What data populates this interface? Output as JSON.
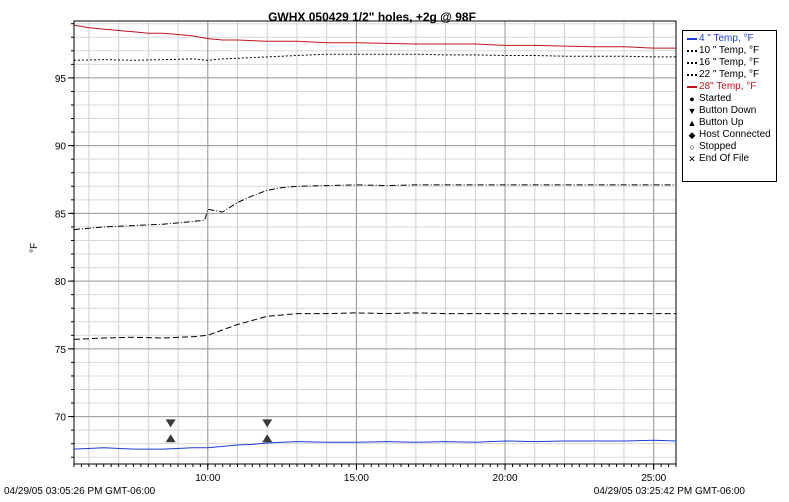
{
  "chart_data": {
    "type": "line",
    "title": "GWHX 050429 1/2\" holes, +2g @ 98F",
    "ylabel": "°F",
    "xlabel": "",
    "xlim": [
      5.5,
      25.75
    ],
    "ylim": [
      66.5,
      99.2
    ],
    "x_ticks": [
      {
        "value": 10,
        "label": "10:00"
      },
      {
        "value": 15,
        "label": "15:00"
      },
      {
        "value": 20,
        "label": "20:00"
      },
      {
        "value": 25,
        "label": "25:00"
      }
    ],
    "y_ticks": [
      70,
      75,
      80,
      85,
      90,
      95
    ],
    "grid": true,
    "legend_position": "right",
    "start_label": "04/29/05 03:05:26 PM GMT-06:00",
    "end_label": "04/29/05 03:25:42 PM GMT-06:00",
    "series": [
      {
        "name": "4 \" Temp, °F",
        "color": "#1a3dd6",
        "dash": "solid",
        "x": [
          5.5,
          6.5,
          7.5,
          8.5,
          9.5,
          10.0,
          10.5,
          11.0,
          11.5,
          12.0,
          12.5,
          13.0,
          14.0,
          15.0,
          16.0,
          17.0,
          18.0,
          19.0,
          20.0,
          21.0,
          22.0,
          23.0,
          24.0,
          25.0,
          25.75
        ],
        "y": [
          67.6,
          67.7,
          67.6,
          67.6,
          67.7,
          67.7,
          67.8,
          67.9,
          67.95,
          68.05,
          68.1,
          68.15,
          68.1,
          68.1,
          68.15,
          68.1,
          68.15,
          68.1,
          68.2,
          68.15,
          68.2,
          68.2,
          68.2,
          68.25,
          68.2
        ]
      },
      {
        "name": "10 \" Temp, °F",
        "color": "#000000",
        "dash": "2,2",
        "x": [
          5.5,
          6.5,
          7.5,
          8.5,
          9.5,
          10.0,
          10.5,
          11.0,
          12.0,
          13.0,
          14.0,
          15.0,
          16.0,
          17.0,
          18.0,
          19.0,
          20.0,
          21.0,
          22.0,
          23.0,
          24.0,
          25.0,
          25.75
        ],
        "y": [
          96.3,
          96.35,
          96.3,
          96.35,
          96.4,
          96.3,
          96.4,
          96.45,
          96.55,
          96.65,
          96.75,
          96.75,
          96.75,
          96.75,
          96.7,
          96.7,
          96.65,
          96.65,
          96.6,
          96.6,
          96.6,
          96.55,
          96.55
        ]
      },
      {
        "name": "16 \" Temp, °F",
        "color": "#000000",
        "dash": "6,3",
        "x": [
          5.5,
          6.5,
          7.5,
          8.5,
          9.5,
          10.0,
          10.5,
          11.0,
          11.5,
          12.0,
          12.5,
          13.0,
          14.0,
          15.0,
          16.0,
          17.0,
          18.0,
          19.0,
          20.0,
          21.0,
          22.0,
          23.0,
          24.0,
          25.0,
          25.75
        ],
        "y": [
          75.7,
          75.8,
          75.85,
          75.8,
          75.9,
          76.0,
          76.4,
          76.8,
          77.1,
          77.4,
          77.5,
          77.6,
          77.6,
          77.65,
          77.6,
          77.65,
          77.6,
          77.6,
          77.6,
          77.6,
          77.6,
          77.6,
          77.6,
          77.6,
          77.6
        ]
      },
      {
        "name": "22 \" Temp, °F",
        "color": "#000000",
        "dash": "6,2,1,2",
        "x": [
          5.5,
          6.5,
          7.5,
          8.5,
          9.0,
          9.5,
          9.9,
          10.0,
          10.5,
          11.0,
          11.5,
          12.0,
          12.5,
          13.0,
          14.0,
          15.0,
          16.0,
          17.0,
          18.0,
          19.0,
          20.0,
          21.0,
          22.0,
          23.0,
          24.0,
          25.0,
          25.75
        ],
        "y": [
          83.8,
          84.0,
          84.1,
          84.2,
          84.3,
          84.4,
          84.5,
          85.3,
          85.1,
          85.8,
          86.3,
          86.7,
          86.9,
          87.0,
          87.05,
          87.1,
          87.05,
          87.1,
          87.1,
          87.1,
          87.1,
          87.1,
          87.1,
          87.1,
          87.1,
          87.1,
          87.1
        ]
      },
      {
        "name": "28\" Temp, °F",
        "color": "#c0141c",
        "dash": "solid",
        "x": [
          5.5,
          6.0,
          6.5,
          7.0,
          7.5,
          8.0,
          8.5,
          9.0,
          9.5,
          10.0,
          10.5,
          11.0,
          12.0,
          13.0,
          14.0,
          15.0,
          16.0,
          17.0,
          18.0,
          19.0,
          20.0,
          21.0,
          22.0,
          23.0,
          24.0,
          25.0,
          25.75
        ],
        "y": [
          98.9,
          98.7,
          98.6,
          98.5,
          98.4,
          98.3,
          98.3,
          98.2,
          98.1,
          97.9,
          97.8,
          97.8,
          97.7,
          97.7,
          97.6,
          97.6,
          97.55,
          97.5,
          97.5,
          97.5,
          97.4,
          97.4,
          97.35,
          97.3,
          97.3,
          97.2,
          97.2
        ]
      }
    ],
    "markers": [
      {
        "type": "Button Down",
        "x": 8.75,
        "y": 69.5
      },
      {
        "type": "Button Up",
        "x": 8.75,
        "y": 68.4
      },
      {
        "type": "Button Down",
        "x": 12.0,
        "y": 69.5
      },
      {
        "type": "Button Up",
        "x": 12.0,
        "y": 68.4
      }
    ],
    "legend_events": [
      {
        "glyph": "●",
        "label": "Started"
      },
      {
        "glyph": "▼",
        "label": "Button Down"
      },
      {
        "glyph": "▲",
        "label": "Button Up"
      },
      {
        "glyph": "◆",
        "label": "Host Connected"
      },
      {
        "glyph": "○",
        "label": "Stopped"
      },
      {
        "glyph": "✕",
        "label": "End Of File"
      }
    ]
  }
}
